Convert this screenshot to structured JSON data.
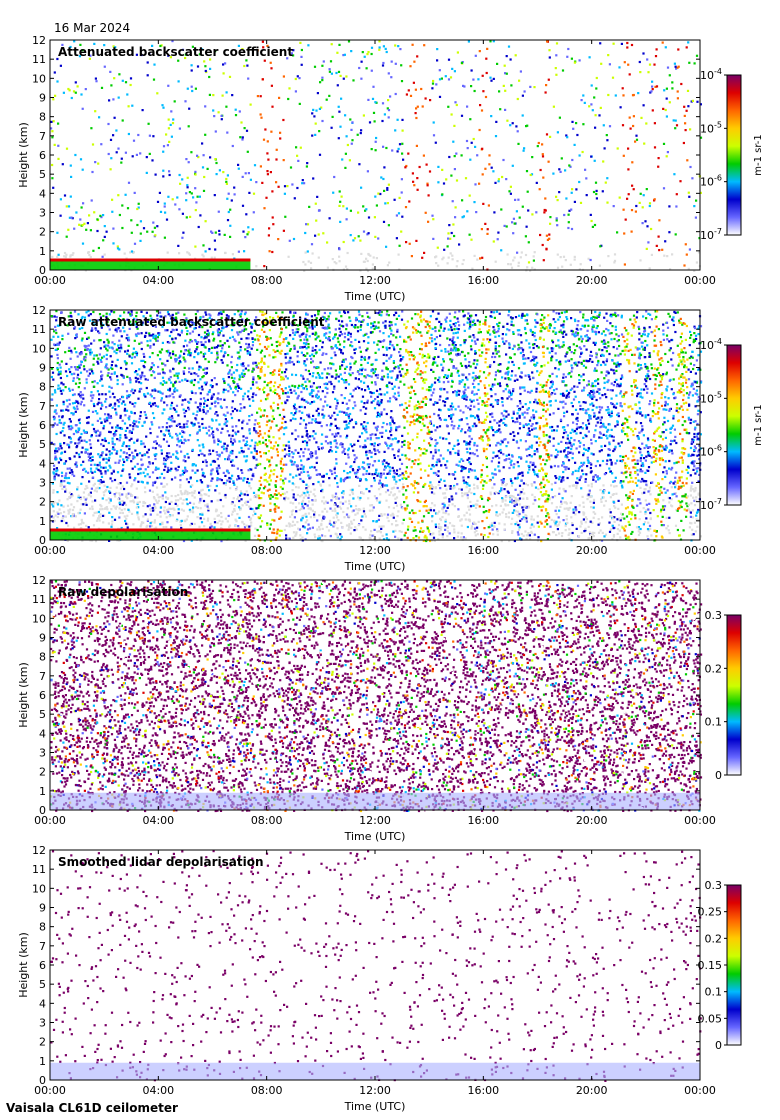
{
  "date": "16 Mar 2024",
  "footer": "Vaisala CL61D ceilometer",
  "chart_data": [
    {
      "type": "heatmap",
      "title": "Attenuated backscatter coefficient",
      "xlabel": "Time (UTC)",
      "ylabel": "Height (km)",
      "x_ticks": [
        "00:00",
        "04:00",
        "08:00",
        "12:00",
        "16:00",
        "20:00",
        "00:00"
      ],
      "xlim": [
        0,
        24
      ],
      "y_ticks": [
        0,
        1,
        2,
        3,
        4,
        5,
        6,
        7,
        8,
        9,
        10,
        11,
        12
      ],
      "ylim": [
        0,
        12
      ],
      "colorbar": {
        "scale": "log",
        "unit": "m-1 sr-1",
        "ticks": [
          {
            "mantissa": "10",
            "exp": "-4"
          },
          {
            "mantissa": "10",
            "exp": "-5"
          },
          {
            "mantissa": "10",
            "exp": "-6"
          },
          {
            "mantissa": "10",
            "exp": "-7"
          }
        ],
        "range": [
          1e-07,
          0.0001
        ]
      },
      "colormap": [
        "#ffffff",
        "#6666ff",
        "#0000cc",
        "#00bbff",
        "#00cc00",
        "#ccff00",
        "#ffcc00",
        "#ff6600",
        "#dd0000",
        "#7a0066"
      ]
    },
    {
      "type": "heatmap",
      "title": "Raw attenuated backscatter coefficient",
      "xlabel": "Time (UTC)",
      "ylabel": "Height (km)",
      "x_ticks": [
        "00:00",
        "04:00",
        "08:00",
        "12:00",
        "16:00",
        "20:00",
        "00:00"
      ],
      "xlim": [
        0,
        24
      ],
      "y_ticks": [
        0,
        1,
        2,
        3,
        4,
        5,
        6,
        7,
        8,
        9,
        10,
        11,
        12
      ],
      "ylim": [
        0,
        12
      ],
      "colorbar": {
        "scale": "log",
        "unit": "m-1 sr-1",
        "ticks": [
          {
            "mantissa": "10",
            "exp": "-4"
          },
          {
            "mantissa": "10",
            "exp": "-5"
          },
          {
            "mantissa": "10",
            "exp": "-6"
          },
          {
            "mantissa": "10",
            "exp": "-7"
          }
        ],
        "range": [
          1e-07,
          0.0001
        ]
      },
      "colormap": [
        "#ffffff",
        "#6666ff",
        "#0000cc",
        "#00bbff",
        "#00cc00",
        "#ccff00",
        "#ffcc00",
        "#ff6600",
        "#dd0000",
        "#7a0066"
      ]
    },
    {
      "type": "heatmap",
      "title": "Raw depolarisation",
      "xlabel": "Time (UTC)",
      "ylabel": "Height (km)",
      "x_ticks": [
        "00:00",
        "04:00",
        "08:00",
        "12:00",
        "16:00",
        "20:00",
        "00:00"
      ],
      "xlim": [
        0,
        24
      ],
      "y_ticks": [
        0,
        1,
        2,
        3,
        4,
        5,
        6,
        7,
        8,
        9,
        10,
        11,
        12
      ],
      "ylim": [
        0,
        12
      ],
      "colorbar": {
        "scale": "linear",
        "unit": "",
        "ticks": [
          "0.3",
          "0.2",
          "0.1",
          "0"
        ],
        "range": [
          0,
          0.3
        ]
      },
      "colormap": [
        "#ffffff",
        "#6666ff",
        "#0000cc",
        "#00bbff",
        "#00cc00",
        "#ccff00",
        "#ffcc00",
        "#ff6600",
        "#dd0000",
        "#7a0066"
      ]
    },
    {
      "type": "heatmap",
      "title": "Smoothed lidar depolarisation",
      "xlabel": "Time (UTC)",
      "ylabel": "Height (km)",
      "x_ticks": [
        "00:00",
        "04:00",
        "08:00",
        "12:00",
        "16:00",
        "20:00",
        "00:00"
      ],
      "xlim": [
        0,
        24
      ],
      "y_ticks": [
        0,
        1,
        2,
        3,
        4,
        5,
        6,
        7,
        8,
        9,
        10,
        11,
        12
      ],
      "ylim": [
        0,
        12
      ],
      "colorbar": {
        "scale": "linear",
        "unit": "",
        "ticks": [
          "0.3",
          "0.25",
          "0.2",
          "0.15",
          "0.1",
          "0.05",
          "0"
        ],
        "range": [
          0,
          0.3
        ]
      },
      "colormap": [
        "#ffffff",
        "#6666ff",
        "#0000cc",
        "#00bbff",
        "#00cc00",
        "#ccff00",
        "#ffcc00",
        "#ff6600",
        "#dd0000",
        "#7a0066"
      ]
    }
  ]
}
